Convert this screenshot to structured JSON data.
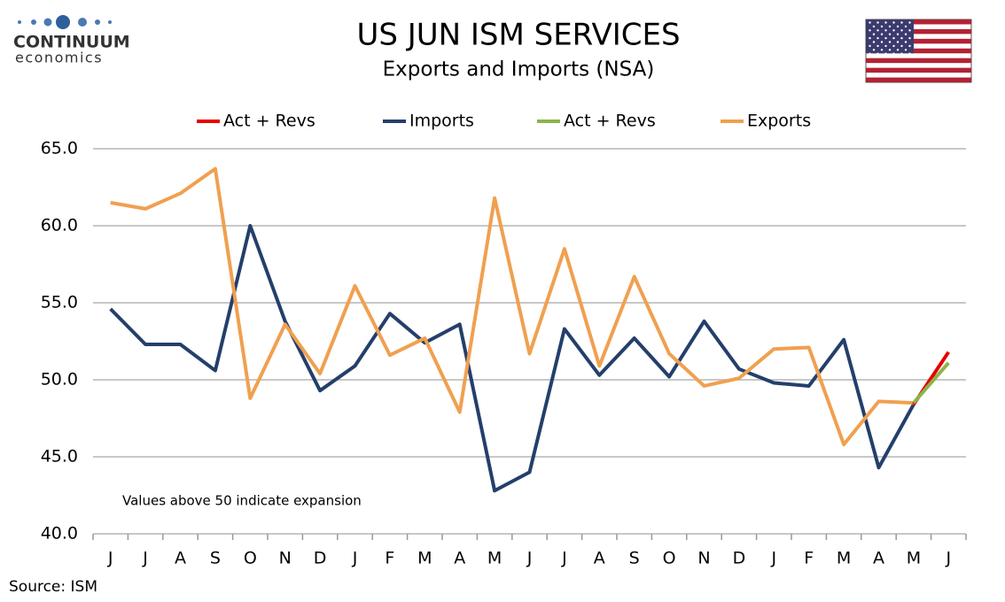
{
  "brand": {
    "name": "CONTINUUM",
    "tagline": "economics"
  },
  "chart_data": {
    "type": "line",
    "title": "US JUN ISM SERVICES",
    "subtitle": "Exports and Imports (NSA)",
    "annotation": "Values above 50 indicate expansion",
    "source": "Source: ISM",
    "categories": [
      "J",
      "J",
      "A",
      "S",
      "O",
      "N",
      "D",
      "J",
      "F",
      "M",
      "A",
      "M",
      "J",
      "J",
      "A",
      "S",
      "O",
      "N",
      "D",
      "J",
      "F",
      "M",
      "A",
      "M",
      "J"
    ],
    "ylim": [
      40,
      65
    ],
    "yticks": [
      {
        "value": 40,
        "label": "40.0"
      },
      {
        "value": 45,
        "label": "45.0"
      },
      {
        "value": 50,
        "label": "50.0"
      },
      {
        "value": 55,
        "label": "55.0"
      },
      {
        "value": 60,
        "label": "60.0"
      },
      {
        "value": 65,
        "label": "65.0"
      }
    ],
    "grid": true,
    "legend": "top",
    "series": [
      {
        "name": "Act + Revs",
        "color": "#e60000",
        "values": [
          null,
          null,
          null,
          null,
          null,
          null,
          null,
          null,
          null,
          null,
          null,
          null,
          null,
          null,
          null,
          null,
          null,
          null,
          null,
          null,
          null,
          null,
          null,
          48.4,
          51.8
        ]
      },
      {
        "name": "Imports",
        "color": "#243f6b",
        "values": [
          54.6,
          52.3,
          52.3,
          50.6,
          60.0,
          53.8,
          49.3,
          50.9,
          54.3,
          52.4,
          53.6,
          42.8,
          44.0,
          53.3,
          50.3,
          52.7,
          50.2,
          53.8,
          50.7,
          49.8,
          49.6,
          52.6,
          44.3,
          48.4,
          null
        ]
      },
      {
        "name": "Act + Revs",
        "color": "#8cb44a",
        "values": [
          null,
          null,
          null,
          null,
          null,
          null,
          null,
          null,
          null,
          null,
          null,
          null,
          null,
          null,
          null,
          null,
          null,
          null,
          null,
          null,
          null,
          null,
          null,
          48.5,
          51.1
        ]
      },
      {
        "name": "Exports",
        "color": "#f0a050",
        "values": [
          61.5,
          61.1,
          62.1,
          63.7,
          48.8,
          53.6,
          50.4,
          56.1,
          51.6,
          52.7,
          47.9,
          61.8,
          51.7,
          58.5,
          50.9,
          56.7,
          51.7,
          49.6,
          50.1,
          52.0,
          52.1,
          45.8,
          48.6,
          48.5,
          null
        ]
      }
    ]
  }
}
